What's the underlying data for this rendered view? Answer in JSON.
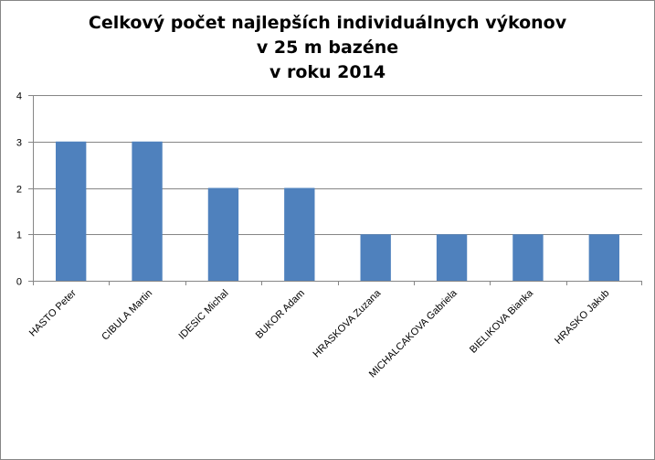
{
  "chart_data": {
    "type": "bar",
    "title_lines": [
      "Celkový počet najlepších individuálnych výkonov",
      "v 25 m bazéne",
      "v roku 2014"
    ],
    "categories": [
      "HASTO Peter",
      "CIBULA Martin",
      "IDESIC Michal",
      "BUKOR Adam",
      "HRASKOVA Zuzana",
      "MICHALCAKOVA Gabriela",
      "BIELIKOVA Bianka",
      "HRASKO Jakub"
    ],
    "values": [
      3,
      3,
      2,
      2,
      1,
      1,
      1,
      1
    ],
    "yticks": [
      "0",
      "1",
      "2",
      "3",
      "4"
    ],
    "ylim": [
      0,
      4
    ],
    "grid": true,
    "legend": "none",
    "bar_color": "#4F81BD",
    "grid_color": "#868686",
    "xlabel": "",
    "ylabel": ""
  }
}
